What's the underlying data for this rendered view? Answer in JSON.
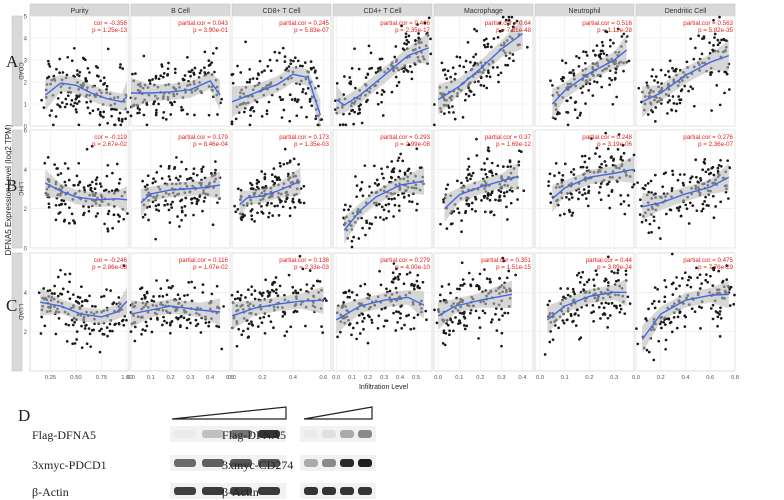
{
  "panels": {
    "a": "A",
    "b": "B",
    "c": "C",
    "d": "D"
  },
  "chart_data": {
    "type": "scatter",
    "ylabel": "DFNA5 Expression Level (log2 TPM)",
    "xlabel": "Infiltration Level",
    "columns": [
      "Purity",
      "B Cell",
      "CD8+ T Cell",
      "CD4+ T Cell",
      "Macrophage",
      "Neutrophil",
      "Dendritic Cell"
    ],
    "rows": [
      {
        "label": "COAD",
        "ylim": [
          0,
          5
        ],
        "yticks": [
          "0",
          "1",
          "2",
          "3",
          "4",
          "5"
        ],
        "stats": [
          {
            "cor": "cor = -0.356",
            "p": "p = 1.25e-13"
          },
          {
            "cor": "partial.cor = 0.043",
            "p": "p = 3.90e-01"
          },
          {
            "cor": "partial.cor = 0.245",
            "p": "p = 5.83e-07"
          },
          {
            "cor": "partial.cor = 0.406",
            "p": "p = 2.35e-17"
          },
          {
            "cor": "partial.cor = 0.64",
            "p": "p = 7.81e-48"
          },
          {
            "cor": "partial.cor = 0.516",
            "p": "p = 1.12e-28"
          },
          {
            "cor": "partial.cor = 0.563",
            "p": "p = 5.82e-35"
          }
        ],
        "fits": [
          [
            [
              0.2,
              1.4
            ],
            [
              0.35,
              1.95
            ],
            [
              0.5,
              1.85
            ],
            [
              0.65,
              1.5
            ],
            [
              0.8,
              1.25
            ],
            [
              0.95,
              1.1
            ],
            [
              1.0,
              1.35
            ]
          ],
          [
            [
              0.0,
              1.5
            ],
            [
              0.1,
              1.5
            ],
            [
              0.2,
              1.55
            ],
            [
              0.3,
              1.65
            ],
            [
              0.4,
              2.05
            ],
            [
              0.45,
              1.4
            ]
          ],
          [
            [
              0.0,
              1.1
            ],
            [
              0.15,
              1.5
            ],
            [
              0.3,
              1.9
            ],
            [
              0.4,
              2.35
            ],
            [
              0.5,
              2.2
            ],
            [
              0.58,
              0.5
            ]
          ],
          [
            [
              0.0,
              1.2
            ],
            [
              0.05,
              0.95
            ],
            [
              0.15,
              1.4
            ],
            [
              0.3,
              2.3
            ],
            [
              0.45,
              3.2
            ],
            [
              0.58,
              3.55
            ]
          ],
          [
            [
              0.0,
              1.2
            ],
            [
              0.1,
              1.8
            ],
            [
              0.2,
              2.6
            ],
            [
              0.3,
              3.5
            ],
            [
              0.4,
              4.2
            ]
          ],
          [
            [
              0.05,
              1.0
            ],
            [
              0.1,
              1.6
            ],
            [
              0.2,
              2.4
            ],
            [
              0.3,
              3.0
            ],
            [
              0.35,
              3.45
            ]
          ],
          [
            [
              0.05,
              1.1
            ],
            [
              0.2,
              1.5
            ],
            [
              0.4,
              2.3
            ],
            [
              0.6,
              2.9
            ],
            [
              0.75,
              3.2
            ]
          ]
        ]
      },
      {
        "label": "LIHC",
        "ylim": [
          0,
          6
        ],
        "yticks": [
          "0",
          "2",
          "4",
          "6"
        ],
        "stats": [
          {
            "cor": "cor = -0.119",
            "p": "p = 2.67e-02"
          },
          {
            "cor": "partial.cor = 0.179",
            "p": "p = 8.46e-04"
          },
          {
            "cor": "partial.cor = 0.173",
            "p": "p = 1.35e-03"
          },
          {
            "cor": "partial.cor = 0.293",
            "p": "p = 2.99e-08"
          },
          {
            "cor": "partial.cor = 0.37",
            "p": "p = 1.69e-12"
          },
          {
            "cor": "partial.cor = 0.248",
            "p": "p = 3.19e-06"
          },
          {
            "cor": "partial.cor = 0.276",
            "p": "p = 2.36e-07"
          }
        ],
        "fits": [
          [
            [
              0.2,
              3.3
            ],
            [
              0.35,
              2.9
            ],
            [
              0.5,
              2.6
            ],
            [
              0.7,
              2.45
            ],
            [
              0.9,
              2.5
            ],
            [
              1.0,
              2.45
            ]
          ],
          [
            [
              0.05,
              2.3
            ],
            [
              0.1,
              2.75
            ],
            [
              0.2,
              2.95
            ],
            [
              0.35,
              3.05
            ],
            [
              0.45,
              3.2
            ]
          ],
          [
            [
              0.05,
              2.2
            ],
            [
              0.1,
              2.55
            ],
            [
              0.2,
              2.65
            ],
            [
              0.3,
              2.9
            ],
            [
              0.45,
              3.4
            ]
          ],
          [
            [
              0.05,
              0.9
            ],
            [
              0.15,
              1.9
            ],
            [
              0.25,
              2.6
            ],
            [
              0.4,
              3.2
            ],
            [
              0.55,
              3.4
            ]
          ],
          [
            [
              0.03,
              2.0
            ],
            [
              0.1,
              2.7
            ],
            [
              0.2,
              3.1
            ],
            [
              0.3,
              3.4
            ],
            [
              0.38,
              3.65
            ]
          ],
          [
            [
              0.05,
              2.5
            ],
            [
              0.1,
              3.05
            ],
            [
              0.2,
              3.6
            ],
            [
              0.3,
              3.8
            ],
            [
              0.38,
              4.0
            ]
          ],
          [
            [
              0.05,
              2.1
            ],
            [
              0.2,
              2.3
            ],
            [
              0.4,
              2.75
            ],
            [
              0.6,
              3.1
            ],
            [
              0.75,
              3.6
            ]
          ]
        ]
      },
      {
        "label": "LUAD",
        "ylim": [
          0,
          6
        ],
        "yticks": [
          "2",
          "4"
        ],
        "stats": [
          {
            "cor": "cor = -0.246",
            "p": "p = 2.86e-08"
          },
          {
            "cor": "partial.cor = 0.116",
            "p": "p = 1.07e-02"
          },
          {
            "cor": "partial.cor = 0.138",
            "p": "p = 2.33e-03"
          },
          {
            "cor": "partial.cor = 0.279",
            "p": "p = 4.00e-10"
          },
          {
            "cor": "partial.cor = 0.351",
            "p": "p = 1.51e-15"
          },
          {
            "cor": "partial.cor = 0.44",
            "p": "p = 3.09e-24"
          },
          {
            "cor": "partial.cor = 0.475",
            "p": "p = 7.76e-29"
          }
        ],
        "fits": [
          [
            [
              0.15,
              3.5
            ],
            [
              0.35,
              3.3
            ],
            [
              0.55,
              2.9
            ],
            [
              0.75,
              2.75
            ],
            [
              0.9,
              3.0
            ],
            [
              1.0,
              3.55
            ]
          ],
          [
            [
              0.0,
              2.9
            ],
            [
              0.1,
              3.1
            ],
            [
              0.2,
              3.3
            ],
            [
              0.35,
              3.1
            ],
            [
              0.45,
              3.0
            ]
          ],
          [
            [
              0.0,
              2.8
            ],
            [
              0.15,
              3.2
            ],
            [
              0.3,
              3.4
            ],
            [
              0.45,
              3.55
            ],
            [
              0.6,
              3.6
            ]
          ],
          [
            [
              0.0,
              2.6
            ],
            [
              0.15,
              3.3
            ],
            [
              0.3,
              3.6
            ],
            [
              0.45,
              3.75
            ],
            [
              0.55,
              3.35
            ]
          ],
          [
            [
              0.0,
              2.8
            ],
            [
              0.08,
              3.3
            ],
            [
              0.2,
              3.6
            ],
            [
              0.35,
              3.9
            ]
          ],
          [
            [
              0.03,
              2.6
            ],
            [
              0.1,
              3.3
            ],
            [
              0.2,
              3.8
            ],
            [
              0.3,
              4.0
            ],
            [
              0.35,
              4.0
            ]
          ],
          [
            [
              0.05,
              1.6
            ],
            [
              0.2,
              2.9
            ],
            [
              0.4,
              3.6
            ],
            [
              0.6,
              3.85
            ],
            [
              0.75,
              3.9
            ]
          ]
        ]
      }
    ],
    "xlims": [
      [
        0.05,
        1.02
      ],
      [
        0.0,
        0.5
      ],
      [
        0.0,
        0.65
      ],
      [
        -0.02,
        0.6
      ],
      [
        -0.02,
        0.45
      ],
      [
        -0.02,
        0.38
      ],
      [
        0.0,
        0.8
      ]
    ],
    "xticks": [
      [
        "0.25",
        "0.50",
        "0.75",
        "1.00"
      ],
      [
        "0.0",
        "0.1",
        "0.2",
        "0.3",
        "0.4",
        "0.5"
      ],
      [
        "0.0",
        "0.2",
        "0.4",
        "0.6"
      ],
      [
        "0.0",
        "0.1",
        "0.2",
        "0.3",
        "0.4",
        "0.5"
      ],
      [
        "0.0",
        "0.1",
        "0.2",
        "0.3",
        "0.4"
      ],
      [
        "0.0",
        "0.1",
        "0.2",
        "0.3"
      ],
      [
        "0.0",
        "0.2",
        "0.4",
        "0.6",
        "0.8"
      ]
    ],
    "xtick_values": [
      [
        0.25,
        0.5,
        0.75,
        1.0
      ],
      [
        0.0,
        0.1,
        0.2,
        0.3,
        0.4,
        0.5
      ],
      [
        0.0,
        0.2,
        0.4,
        0.6
      ],
      [
        0.0,
        0.1,
        0.2,
        0.3,
        0.4,
        0.5
      ],
      [
        0.0,
        0.1,
        0.2,
        0.3,
        0.4
      ],
      [
        0.0,
        0.1,
        0.2,
        0.3
      ],
      [
        0.0,
        0.2,
        0.4,
        0.6,
        0.8
      ]
    ],
    "colors": {
      "points": "#1a1a1a",
      "fit": "#4169e1",
      "ci": "#bdbdbd",
      "stats": "#e8201a",
      "strip": "#d9d9d9",
      "panel": "#ffffff",
      "grid": "#ebebeb"
    }
  },
  "western_blot": {
    "left": {
      "rows": [
        "Flag-DFNA5",
        "3xmyc-PDCD1",
        "β-Actin"
      ],
      "intensities": [
        [
          0.0,
          0.2,
          0.55,
          0.85
        ],
        [
          0.6,
          0.65,
          0.7,
          0.7
        ],
        [
          0.8,
          0.82,
          0.8,
          0.82
        ]
      ]
    },
    "right": {
      "rows": [
        "Flag-DFNA5",
        "3xmyc-CD274",
        "β-Actin"
      ],
      "intensities": [
        [
          0.0,
          0.05,
          0.3,
          0.45
        ],
        [
          0.3,
          0.45,
          0.9,
          0.95
        ],
        [
          0.85,
          0.85,
          0.85,
          0.85
        ]
      ]
    }
  }
}
